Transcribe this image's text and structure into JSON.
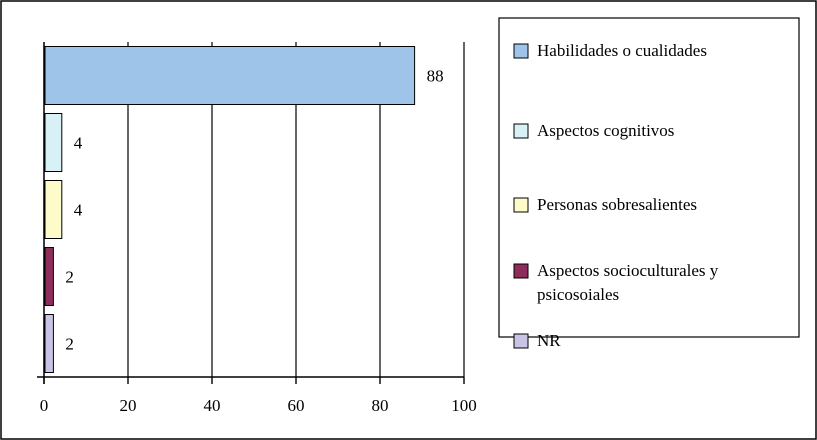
{
  "chart_data": {
    "type": "bar",
    "orientation": "horizontal",
    "categories": [
      "Habilidades o cualidades",
      "Aspectos cognitivos",
      "Personas sobresalientes",
      "Aspectos socioculturales y psicosoiales",
      "NR"
    ],
    "values": [
      88,
      4,
      4,
      2,
      2
    ],
    "data_labels": [
      "88",
      "4",
      "4",
      "2",
      "2"
    ],
    "colors": [
      "#9ec4ea",
      "#d8f1f7",
      "#fdfbc9",
      "#8e2d5c",
      "#c9c4e6"
    ],
    "title": "",
    "xlabel": "",
    "ylabel": "",
    "xlim": [
      0,
      100
    ],
    "xticks": [
      "0",
      "20",
      "40",
      "60",
      "80",
      "100"
    ],
    "grid": "vertical",
    "legend": {
      "position": "right",
      "entries": [
        {
          "lines": [
            "Habilidades o cualidades"
          ],
          "color": "#9ec4ea"
        },
        {
          "lines": [
            "Aspectos cognitivos"
          ],
          "color": "#d8f1f7"
        },
        {
          "lines": [
            "Personas sobresalientes"
          ],
          "color": "#fdfbc9"
        },
        {
          "lines": [
            "Aspectos socioculturales y",
            "psicosoiales"
          ],
          "color": "#8e2d5c"
        },
        {
          "lines": [
            "NR"
          ],
          "color": "#c9c4e6"
        }
      ]
    }
  }
}
